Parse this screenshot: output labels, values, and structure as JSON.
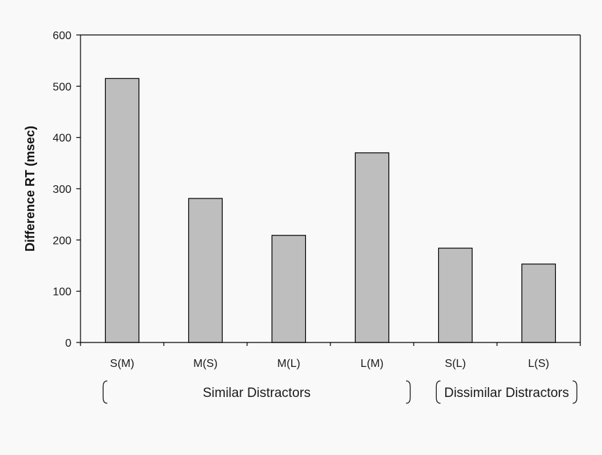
{
  "chart_data": {
    "type": "bar",
    "title": "",
    "xlabel": "",
    "ylabel": "Difference RT (msec)",
    "ylim": [
      0,
      600
    ],
    "yticks": [
      0,
      100,
      200,
      300,
      400,
      500,
      600
    ],
    "categories": [
      "S(M)",
      "M(S)",
      "M(L)",
      "L(M)",
      "S(L)",
      "L(S)"
    ],
    "values": [
      515,
      281,
      209,
      370,
      184,
      153
    ],
    "grid": false,
    "legend": "none",
    "groups": [
      {
        "label": "Similar Distractors",
        "start": 0,
        "end": 3
      },
      {
        "label": "Dissimilar Distractors",
        "start": 4,
        "end": 5
      }
    ],
    "colors": {
      "bar_fill": "#bebebe",
      "bar_stroke": "#000000",
      "axis": "#000000",
      "background": "#f9f9f9"
    }
  }
}
